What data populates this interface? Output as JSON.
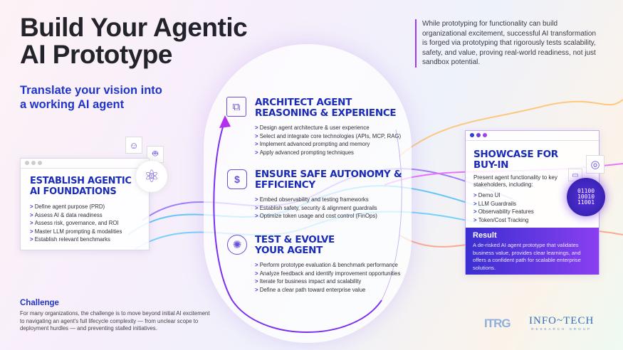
{
  "title": "Build Your Agentic AI Prototype",
  "subtitle": "Translate your vision into a working AI agent",
  "intro": "While prototyping for functionality can build organizational excitement, successful AI transformation is forged via prototyping that rigorously tests scalability, safety, and value, proving real-world readiness, not just sandbox potential.",
  "colors": {
    "accent": "#1f35c8",
    "purple": "#7b2ff0",
    "heading": "#1a2bb8"
  },
  "foundations": {
    "heading": "ESTABLISH AGENTIC AI FOUNDATIONS",
    "icons": [
      "brain-head-icon",
      "robot-icon",
      "atom-icon"
    ],
    "items": [
      "Define agent purpose (PRD)",
      "Assess AI & data readiness",
      "Assess risk, governance, and ROI",
      "Master LLM prompting & modalities",
      "Establish relevant benchmarks"
    ]
  },
  "stages": [
    {
      "heading": "ARCHITECT AGENT REASONING & EXPERIENCE",
      "icon": "puzzle-circuit-icon",
      "items": [
        "Design agent architecture & user experience",
        "Select and integrate core technologies (APIs, MCP, RAG)",
        "Implement advanced prompting and memory",
        "Apply advanced prompting techniques"
      ]
    },
    {
      "heading": "ENSURE SAFE AUTONOMY & EFFICIENCY",
      "icon": "shield-dollar-icon",
      "items": [
        "Embed observability and testing frameworks",
        "Establish safety, security & alignment guardrails",
        "Optimize token usage and cost control (FinOps)"
      ]
    },
    {
      "heading": "TEST & EVOLVE YOUR AGENT",
      "icon": "network-hub-icon",
      "items": [
        "Perform prototype evaluation & benchmark performance",
        "Analyze feedback and identify improvement opportunities",
        "Iterate for business impact and scalability",
        "Define a clear path toward enterprise value"
      ]
    }
  ],
  "showcase": {
    "heading": "SHOWCASE FOR BUY-IN",
    "intro": "Present agent functionality to key stakeholders, including:",
    "icons": [
      "target-icon",
      "chat-icon",
      "binary-monitor-icon"
    ],
    "items": [
      "Demo UI",
      "LLM Guardrails",
      "Observability Features",
      "Token/Cost Tracking"
    ],
    "result_heading": "Result",
    "result_text": "A de-risked AI agent prototype that validates business value, provides clear learnings, and offers a confident path for scalable enterprise solutions."
  },
  "challenge": {
    "heading": "Challenge",
    "text": "For many organizations, the challenge is to move beyond initial AI excitement to navigating an agent's full lifecycle complexity — from unclear scope to deployment hurdles — and preventing stalled initiatives."
  },
  "logos": {
    "itrg": "ITRG",
    "infotech": "INFO~TECH",
    "infotech_sub": "RESEARCH GROUP"
  }
}
